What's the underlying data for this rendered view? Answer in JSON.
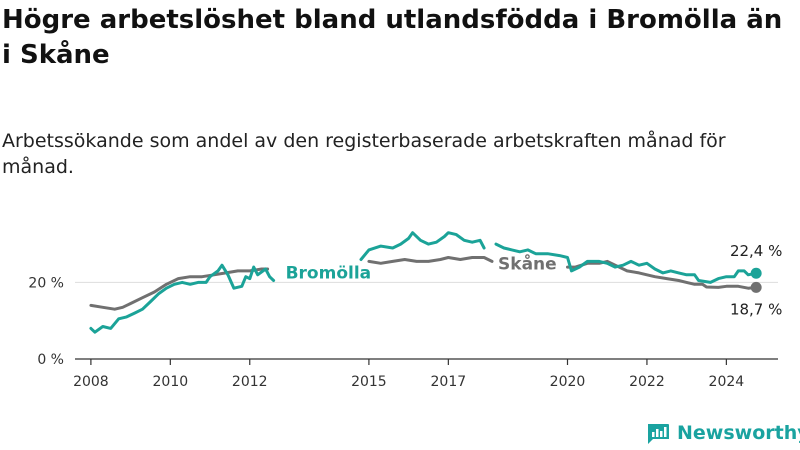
{
  "title": "Högre arbetslöshet bland utlandsfödda i Bromölla än i Skåne",
  "subtitle": "Arbetssökande som andel av den registerbaserade arbetskraften månad för månad.",
  "brand": {
    "name": "Newsworthy",
    "icon": "newsworthy-logo-icon"
  },
  "colors": {
    "bromolla": "#1ba398",
    "skane": "#707070",
    "grid": "#dddddd",
    "axis": "#333333"
  },
  "chart_data": {
    "type": "line",
    "title": "Högre arbetslöshet bland utlandsfödda i Bromölla än i Skåne",
    "subtitle": "Arbetssökande som andel av den registerbaserade arbetskraften månad för månad.",
    "xlabel": "",
    "ylabel": "",
    "xlim": [
      2007.6,
      2025.3
    ],
    "ylim": [
      0,
      35
    ],
    "y_ticks": [
      0,
      20
    ],
    "y_tick_labels": [
      "0 %",
      "20 %"
    ],
    "x_ticks": [
      2008,
      2010,
      2012,
      2015,
      2017,
      2020,
      2022,
      2024
    ],
    "x_tick_labels": [
      "2008",
      "2010",
      "2012",
      "2015",
      "2017",
      "2020",
      "2022",
      "2024"
    ],
    "grid": "horizontal",
    "legend": "inline labels",
    "series": [
      {
        "name": "Bromölla",
        "color": "#1ba398",
        "segments": [
          [
            [
              2008.0,
              8.0
            ],
            [
              2008.1,
              7.0
            ],
            [
              2008.3,
              8.5
            ],
            [
              2008.5,
              8.0
            ],
            [
              2008.7,
              10.5
            ],
            [
              2008.9,
              11.0
            ],
            [
              2009.1,
              12.0
            ],
            [
              2009.3,
              13.0
            ],
            [
              2009.5,
              15.0
            ],
            [
              2009.7,
              17.0
            ],
            [
              2009.9,
              18.5
            ],
            [
              2010.1,
              19.5
            ],
            [
              2010.3,
              20.0
            ],
            [
              2010.5,
              19.5
            ],
            [
              2010.7,
              20.0
            ],
            [
              2010.9,
              20.0
            ],
            [
              2011.0,
              21.5
            ],
            [
              2011.2,
              23.0
            ],
            [
              2011.3,
              24.5
            ],
            [
              2011.45,
              22.0
            ],
            [
              2011.6,
              18.5
            ],
            [
              2011.8,
              19.0
            ],
            [
              2011.9,
              21.5
            ],
            [
              2012.0,
              21.0
            ],
            [
              2012.1,
              24.0
            ],
            [
              2012.2,
              22.0
            ],
            [
              2012.4,
              23.5
            ],
            [
              2012.5,
              21.5
            ],
            [
              2012.6,
              20.5
            ]
          ],
          [
            [
              2014.8,
              26.0
            ],
            [
              2015.0,
              28.5
            ],
            [
              2015.3,
              29.5
            ],
            [
              2015.6,
              29.0
            ],
            [
              2015.8,
              30.0
            ],
            [
              2016.0,
              31.5
            ],
            [
              2016.1,
              33.0
            ],
            [
              2016.3,
              31.0
            ],
            [
              2016.5,
              30.0
            ],
            [
              2016.7,
              30.5
            ],
            [
              2016.9,
              32.0
            ],
            [
              2017.0,
              33.0
            ],
            [
              2017.2,
              32.5
            ],
            [
              2017.4,
              31.0
            ],
            [
              2017.6,
              30.5
            ],
            [
              2017.8,
              31.0
            ],
            [
              2017.9,
              29.0
            ]
          ],
          [
            [
              2018.2,
              30.0
            ],
            [
              2018.4,
              29.0
            ],
            [
              2018.6,
              28.5
            ],
            [
              2018.8,
              28.0
            ],
            [
              2019.0,
              28.5
            ],
            [
              2019.2,
              27.5
            ],
            [
              2019.5,
              27.5
            ],
            [
              2019.8,
              27.0
            ],
            [
              2020.0,
              26.5
            ],
            [
              2020.1,
              23.0
            ],
            [
              2020.3,
              24.0
            ],
            [
              2020.5,
              25.5
            ],
            [
              2020.8,
              25.5
            ],
            [
              2021.0,
              25.0
            ],
            [
              2021.2,
              24.0
            ],
            [
              2021.4,
              24.5
            ],
            [
              2021.6,
              25.5
            ],
            [
              2021.8,
              24.5
            ],
            [
              2022.0,
              25.0
            ],
            [
              2022.2,
              23.5
            ],
            [
              2022.4,
              22.5
            ],
            [
              2022.6,
              23.0
            ],
            [
              2022.8,
              22.5
            ],
            [
              2023.0,
              22.0
            ],
            [
              2023.2,
              22.0
            ],
            [
              2023.3,
              20.5
            ],
            [
              2023.6,
              20.0
            ],
            [
              2023.8,
              21.0
            ],
            [
              2024.0,
              21.5
            ],
            [
              2024.2,
              21.5
            ],
            [
              2024.3,
              23.0
            ],
            [
              2024.45,
              23.0
            ],
            [
              2024.55,
              22.0
            ],
            [
              2024.75,
              22.4
            ]
          ]
        ]
      },
      {
        "name": "Skåne",
        "color": "#707070",
        "segments": [
          [
            [
              2008.0,
              14.0
            ],
            [
              2008.3,
              13.5
            ],
            [
              2008.6,
              13.0
            ],
            [
              2008.8,
              13.5
            ],
            [
              2009.0,
              14.5
            ],
            [
              2009.3,
              16.0
            ],
            [
              2009.6,
              17.5
            ],
            [
              2009.9,
              19.5
            ],
            [
              2010.2,
              21.0
            ],
            [
              2010.5,
              21.5
            ],
            [
              2010.8,
              21.5
            ],
            [
              2011.1,
              22.0
            ],
            [
              2011.4,
              22.5
            ],
            [
              2011.7,
              23.0
            ],
            [
              2012.0,
              23.0
            ],
            [
              2012.3,
              23.5
            ],
            [
              2012.45,
              23.5
            ]
          ],
          [
            [
              2015.0,
              25.5
            ],
            [
              2015.3,
              25.0
            ],
            [
              2015.6,
              25.5
            ],
            [
              2015.9,
              26.0
            ],
            [
              2016.2,
              25.5
            ],
            [
              2016.5,
              25.5
            ],
            [
              2016.8,
              26.0
            ],
            [
              2017.0,
              26.5
            ],
            [
              2017.3,
              26.0
            ],
            [
              2017.6,
              26.5
            ],
            [
              2017.9,
              26.5
            ],
            [
              2018.1,
              25.5
            ]
          ],
          [
            [
              2020.0,
              24.0
            ],
            [
              2020.2,
              24.0
            ],
            [
              2020.5,
              25.0
            ],
            [
              2020.8,
              25.0
            ],
            [
              2021.0,
              25.5
            ],
            [
              2021.2,
              24.5
            ],
            [
              2021.5,
              23.0
            ],
            [
              2021.8,
              22.5
            ],
            [
              2022.0,
              22.0
            ],
            [
              2022.2,
              21.5
            ],
            [
              2022.5,
              21.0
            ],
            [
              2022.8,
              20.5
            ],
            [
              2023.0,
              20.0
            ],
            [
              2023.2,
              19.5
            ],
            [
              2023.4,
              19.5
            ],
            [
              2023.5,
              18.8
            ],
            [
              2023.8,
              18.7
            ],
            [
              2024.0,
              19.0
            ],
            [
              2024.3,
              19.0
            ],
            [
              2024.55,
              18.5
            ],
            [
              2024.75,
              18.7
            ]
          ]
        ]
      }
    ],
    "series_labels": [
      {
        "series": "Bromölla",
        "text": "Bromölla"
      },
      {
        "series": "Skåne",
        "text": "Skåne"
      }
    ],
    "end_values": [
      {
        "series": "Bromölla",
        "text": "22,4 %"
      },
      {
        "series": "Skåne",
        "text": "18,7 %"
      }
    ]
  }
}
